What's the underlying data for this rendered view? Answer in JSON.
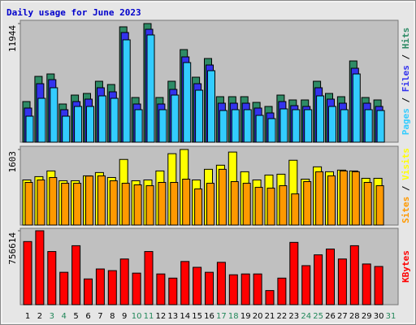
{
  "title": "Daily usage for June 2023",
  "legend_separator": " / ",
  "chart_data": [
    {
      "type": "bar",
      "ylim": [
        0,
        11944
      ],
      "yticks": [
        11944
      ],
      "series": [
        {
          "name": "Pages",
          "color": "#33ccff",
          "values": [
            2618,
            4417,
            5481,
            2618,
            3599,
            3599,
            4663,
            4417,
            10307,
            3272,
            10798,
            3272,
            4744,
            8016,
            5235,
            7198,
            3190,
            3272,
            3272,
            2699,
            2372,
            3354,
            3272,
            3272,
            4663,
            3599,
            3272,
            6871,
            3272,
            3190,
            null
          ]
        },
        {
          "name": "Files",
          "color": "#3333ee",
          "values": [
            3436,
            5890,
            6299,
            3272,
            4090,
            4335,
            5481,
            5072,
            11043,
            3845,
            11370,
            3845,
            5317,
            8589,
            5890,
            7771,
            3926,
            3926,
            3926,
            3436,
            2945,
            4090,
            3681,
            3599,
            5481,
            4335,
            3926,
            7444,
            3926,
            3599,
            null
          ]
        },
        {
          "name": "Hits",
          "color": "#2e8b66",
          "values": [
            4090,
            6626,
            6871,
            3845,
            4744,
            4908,
            6135,
            5808,
            11616,
            4499,
            11944,
            4499,
            6135,
            9325,
            6544,
            8425,
            4581,
            4581,
            4581,
            4008,
            3599,
            4744,
            4254,
            4254,
            6135,
            4908,
            4581,
            8180,
            4499,
            4254,
            null
          ]
        }
      ]
    },
    {
      "type": "bar",
      "ylim": [
        0,
        1603
      ],
      "yticks": [
        1603
      ],
      "series": [
        {
          "name": "Sites",
          "color": "#ff9900",
          "values": [
            905,
            957,
            1009,
            887,
            887,
            1040,
            1044,
            940,
            887,
            853,
            835,
            905,
            905,
            974,
            766,
            887,
            1183,
            922,
            887,
            800,
            783,
            835,
            661,
            922,
            1131,
            1044,
            1148,
            1131,
            905,
            835,
            null
          ]
        },
        {
          "name": "Visits",
          "color": "#ffff00",
          "values": [
            957,
            1027,
            1148,
            940,
            940,
            1044,
            1114,
            1009,
            1392,
            940,
            957,
            1148,
            1514,
            1603,
            957,
            1183,
            1270,
            1549,
            1131,
            957,
            1061,
            1079,
            1375,
            974,
            1235,
            1131,
            1166,
            1148,
            992,
            992,
            null
          ]
        }
      ]
    },
    {
      "type": "bar",
      "ylim": [
        0,
        756614
      ],
      "yticks": [
        756614
      ],
      "categories": [
        "1",
        "2",
        "3",
        "4",
        "5",
        "6",
        "7",
        "8",
        "9",
        "10",
        "11",
        "12",
        "13",
        "14",
        "15",
        "16",
        "17",
        "18",
        "19",
        "20",
        "21",
        "22",
        "23",
        "24",
        "25",
        "26",
        "27",
        "28",
        "29",
        "30",
        "31"
      ],
      "category_colors": [
        "#000000",
        "#000000",
        "#22885a",
        "#22885a",
        "#000000",
        "#000000",
        "#000000",
        "#000000",
        "#000000",
        "#22885a",
        "#22885a",
        "#000000",
        "#000000",
        "#000000",
        "#000000",
        "#000000",
        "#22885a",
        "#22885a",
        "#000000",
        "#000000",
        "#000000",
        "#000000",
        "#000000",
        "#22885a",
        "#22885a",
        "#000000",
        "#000000",
        "#000000",
        "#000000",
        "#000000",
        "#22885a"
      ],
      "series": [
        {
          "name": "KBytes",
          "color": "#ff0000",
          "values": [
            646076,
            756614,
            544064,
            331539,
            603571,
            263531,
            365543,
            348541,
            467555,
            323038,
            544064,
            314537,
            272032,
            442052,
            382545,
            331539,
            433551,
            306036,
            314537,
            314537,
            144517,
            272032,
            637575,
            399547,
            510060,
            569567,
            467555,
            603571,
            416549,
            391046,
            null
          ]
        }
      ]
    }
  ]
}
